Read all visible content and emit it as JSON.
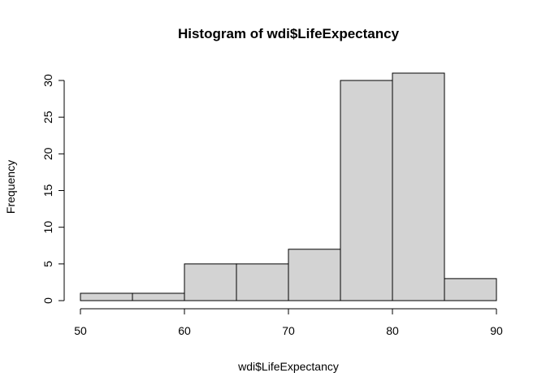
{
  "chart_data": {
    "type": "bar",
    "title": "Histogram of wdi$LifeExpectancy",
    "xlabel": "wdi$LifeExpectancy",
    "ylabel": "Frequency",
    "bins": [
      {
        "from": 50,
        "to": 55,
        "count": 1
      },
      {
        "from": 55,
        "to": 60,
        "count": 1
      },
      {
        "from": 60,
        "to": 65,
        "count": 5
      },
      {
        "from": 65,
        "to": 70,
        "count": 5
      },
      {
        "from": 70,
        "to": 75,
        "count": 7
      },
      {
        "from": 75,
        "to": 80,
        "count": 30
      },
      {
        "from": 80,
        "to": 85,
        "count": 31
      },
      {
        "from": 85,
        "to": 90,
        "count": 3
      }
    ],
    "xlim": [
      50,
      90
    ],
    "ylim": [
      0,
      31
    ],
    "xticks": [
      50,
      60,
      70,
      80,
      90
    ],
    "yticks": [
      0,
      5,
      10,
      15,
      20,
      25,
      30
    ],
    "bar_color": "#d3d3d3",
    "grid": false
  }
}
